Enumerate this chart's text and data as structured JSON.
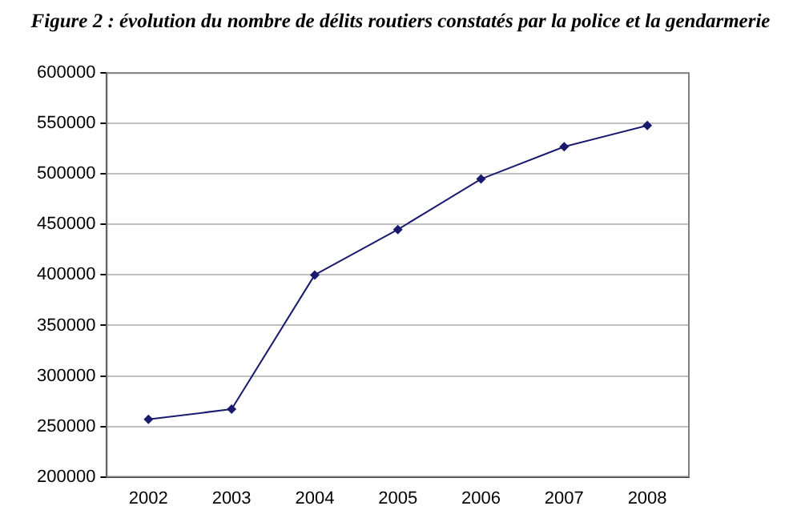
{
  "chart_data": {
    "type": "line",
    "title": "Figure 2 : évolution du nombre de délits routiers constatés par la police et la gendarmerie",
    "categories": [
      "2002",
      "2003",
      "2004",
      "2005",
      "2006",
      "2007",
      "2008"
    ],
    "series": [
      {
        "color": "#1a1a6e",
        "values": [
          257000,
          267000,
          400000,
          445000,
          495000,
          527000,
          548000
        ]
      }
    ],
    "ylim": [
      200000,
      600000
    ],
    "yticks": [
      200000,
      250000,
      300000,
      350000,
      400000,
      450000,
      500000,
      550000,
      600000
    ],
    "grid": "y",
    "legend": false,
    "marker": "diamond",
    "line_style": "solid"
  }
}
